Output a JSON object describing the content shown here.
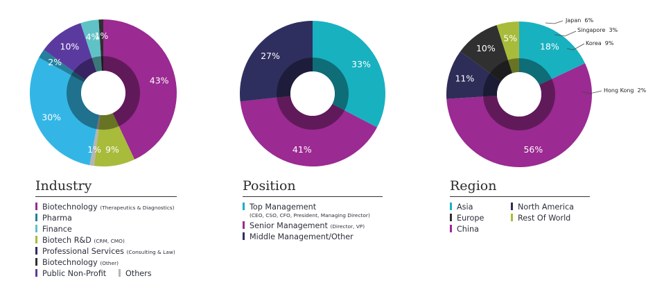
{
  "colors": {
    "biotech": "#9b2a92",
    "pharma": "#24809c",
    "finance": "#5fc2c6",
    "biotech_rd": "#a8bb3a",
    "professional": "#2d2d57",
    "biotech_other": "#2f2f2f",
    "nonprofit": "#5b3aa0",
    "others": "#b5b5b5",
    "light_blue": "#33b6e6",
    "top": "#18b1c0",
    "senior": "#9b2a92",
    "middle": "#2f2f5f",
    "asia": "#18b1c0",
    "europe": "#303030",
    "china": "#9b2a92",
    "north_america": "#2d2d57",
    "rest": "#a8bb3a"
  },
  "chart_data": [
    {
      "type": "pie",
      "title": "Industry",
      "slices": [
        {
          "label": "43%",
          "value": 43,
          "color": "#9b2a92"
        },
        {
          "label": "9%",
          "value": 9,
          "color": "#a8bb3a"
        },
        {
          "label": "1%",
          "value": 1,
          "color": "#b5b5b5"
        },
        {
          "label": "30%",
          "value": 30,
          "color": "#33b6e6"
        },
        {
          "label": "2%",
          "value": 2,
          "color": "#24809c"
        },
        {
          "label": "10%",
          "value": 10,
          "color": "#5b3aa0"
        },
        {
          "label": "4%",
          "value": 4,
          "color": "#5fc2c6"
        },
        {
          "label": "1%",
          "value": 1,
          "color": "#2f2f2f"
        }
      ]
    },
    {
      "type": "pie",
      "title": "Position",
      "slices": [
        {
          "label": "33%",
          "value": 33,
          "color": "#18b1c0"
        },
        {
          "label": "41%",
          "value": 41,
          "color": "#9b2a92"
        },
        {
          "label": "27%",
          "value": 27,
          "color": "#2f2f5f"
        }
      ]
    },
    {
      "type": "pie",
      "title": "Region",
      "slices": [
        {
          "label": "18%",
          "value": 18,
          "color": "#18b1c0"
        },
        {
          "label": "56%",
          "value": 56,
          "color": "#9b2a92"
        },
        {
          "label": "11%",
          "value": 11,
          "color": "#2d2d57"
        },
        {
          "label": "10%",
          "value": 10,
          "color": "#303030"
        },
        {
          "label": "5%",
          "value": 5,
          "color": "#a8bb3a"
        }
      ],
      "annotations": [
        {
          "label": "Japan",
          "value": "6%"
        },
        {
          "label": "Singapore",
          "value": "3%"
        },
        {
          "label": "Korea",
          "value": "9%"
        },
        {
          "label": "Hong Kong",
          "value": "2%"
        }
      ]
    }
  ],
  "industry": {
    "title": "Industry",
    "legend": [
      {
        "label": "Biotechnology",
        "sub": "(Therapeutics & Diagnostics)",
        "color": "#9b2a92"
      },
      {
        "label": "Pharma",
        "sub": "",
        "color": "#24809c"
      },
      {
        "label": "Finance",
        "sub": "",
        "color": "#5fc2c6"
      },
      {
        "label": "Biotech R&D",
        "sub": "(CRM, CMO)",
        "color": "#a8bb3a"
      },
      {
        "label": "Professional Services",
        "sub": "(Consulting & Law)",
        "color": "#2d2d57"
      },
      {
        "label": "Biotechnology",
        "sub": "(Other)",
        "color": "#2f2f2f"
      },
      {
        "label": "Public Non-Profit",
        "sub": "",
        "color": "#5b3aa0"
      },
      {
        "label": "Others",
        "sub": "",
        "color": "#b5b5b5"
      }
    ]
  },
  "position": {
    "title": "Position",
    "legend": [
      {
        "label": "Top Management",
        "sub": "(CEO, CSO, CFO, President, Managing Director)",
        "color": "#18b1c0"
      },
      {
        "label": "Senior Management",
        "sub": "(Director, VP)",
        "color": "#9b2a92"
      },
      {
        "label": "Middle Management/Other",
        "sub": "",
        "color": "#2f2f5f"
      }
    ]
  },
  "region": {
    "title": "Region",
    "legend": [
      {
        "label": "Asia",
        "color": "#18b1c0"
      },
      {
        "label": "Europe",
        "color": "#303030"
      },
      {
        "label": "China",
        "color": "#9b2a92"
      },
      {
        "label": "North America",
        "color": "#2d2d57"
      },
      {
        "label": "Rest Of World",
        "color": "#a8bb3a"
      }
    ]
  }
}
